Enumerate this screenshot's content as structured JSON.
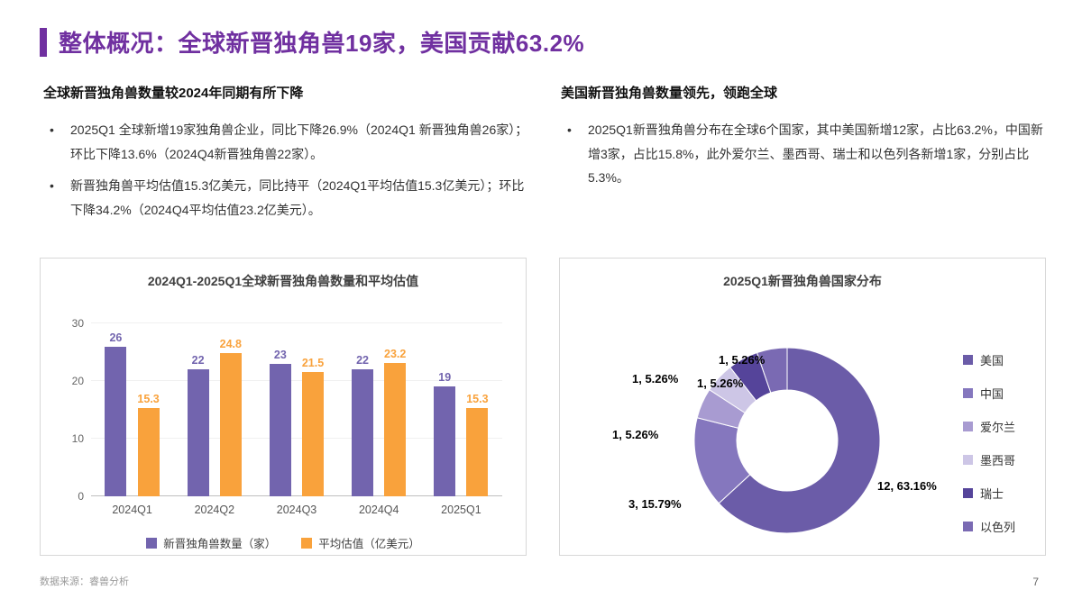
{
  "page": {
    "title": "整体概况：全球新晋独角兽19家，美国贡献63.2%",
    "footer_source": "数据来源：睿兽分析",
    "page_number": "7"
  },
  "colors": {
    "accent": "#7030A0",
    "bar_purple": "#7264AE",
    "bar_orange": "#F9A23C"
  },
  "left_section": {
    "heading": "全球新晋独角兽数量较2024年同期有所下降",
    "bullets": [
      "2025Q1 全球新增19家独角兽企业，同比下降26.9%（2024Q1 新晋独角兽26家）；环比下降13.6%（2024Q4新晋独角兽22家）。",
      "新晋独角兽平均估值15.3亿美元，同比持平（2024Q1平均估值15.3亿美元）；环比下降34.2%（2024Q4平均估值23.2亿美元）。"
    ]
  },
  "right_section": {
    "heading": "美国新晋独角兽数量领先，领跑全球",
    "bullets": [
      "2025Q1新晋独角兽分布在全球6个国家，其中美国新增12家，占比63.2%，中国新增3家，占比15.8%，此外爱尔兰、墨西哥、瑞士和以色列各新增1家，分别占比5.3%。"
    ]
  },
  "chart_data": [
    {
      "type": "bar",
      "title": "2024Q1-2025Q1全球新晋独角兽数量和平均估值",
      "categories": [
        "2024Q1",
        "2024Q2",
        "2024Q3",
        "2024Q4",
        "2025Q1"
      ],
      "series": [
        {
          "name": "新晋独角兽数量（家）",
          "color": "#7264AE",
          "values": [
            26,
            22,
            23,
            22,
            19
          ]
        },
        {
          "name": "平均估值（亿美元）",
          "color": "#F9A23C",
          "values": [
            15.3,
            24.8,
            21.5,
            23.2,
            15.3
          ]
        }
      ],
      "ylim": [
        0,
        30
      ],
      "yticks": [
        0,
        10,
        20,
        30
      ],
      "grid": false,
      "legend_position": "bottom"
    },
    {
      "type": "pie",
      "donut": true,
      "title": "2025Q1新晋独角兽国家分布",
      "labels": [
        "美国",
        "中国",
        "爱尔兰",
        "墨西哥",
        "瑞士",
        "以色列"
      ],
      "values": [
        12,
        3,
        1,
        1,
        1,
        1
      ],
      "percents": [
        63.16,
        15.79,
        5.26,
        5.26,
        5.26,
        5.26
      ],
      "percent_labels": [
        "12, 63.16%",
        "3, 15.79%",
        "1, 5.26%",
        "1, 5.26%",
        "1, 5.26%",
        "1, 5.26%"
      ],
      "colors": [
        "#6B5CA8",
        "#8577BE",
        "#A89BD1",
        "#CDC6E6",
        "#55449A",
        "#7A6AB3"
      ],
      "legend_position": "right"
    }
  ]
}
